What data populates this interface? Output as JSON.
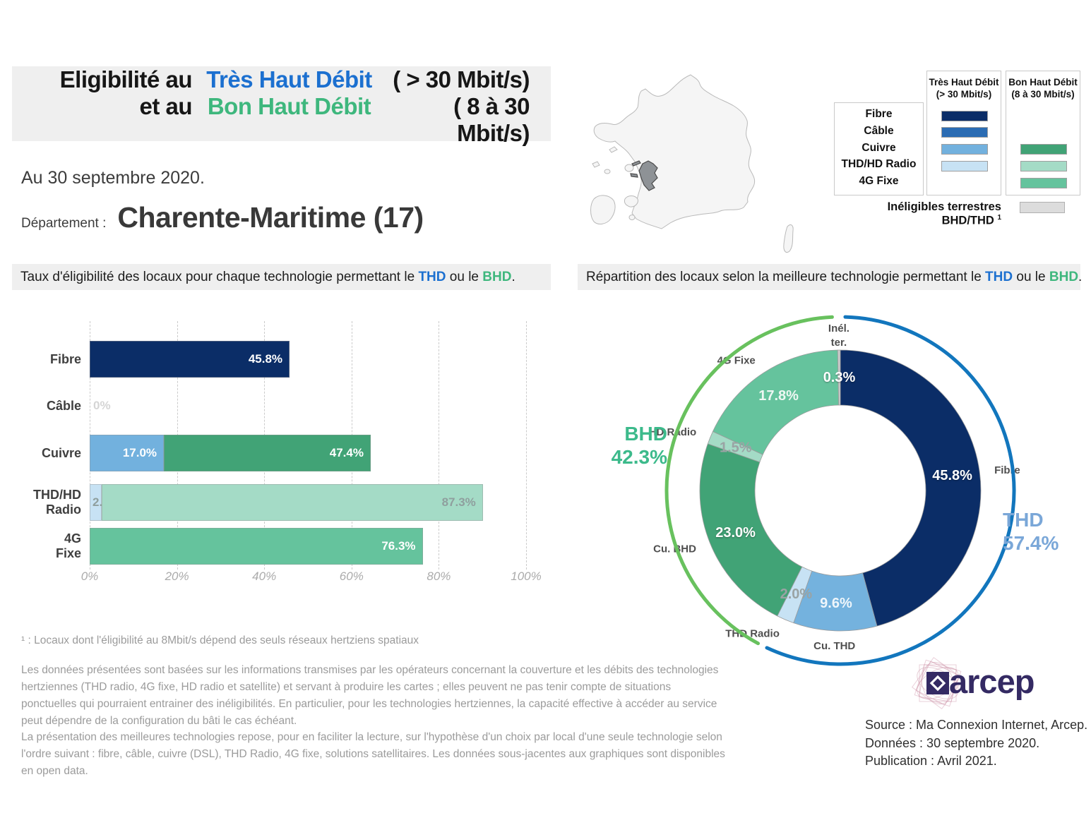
{
  "colors": {
    "accent_blue": "#1c70d0",
    "accent_green": "#3eb77d",
    "arc_blue": "#1276bd",
    "arc_green": "#68c15e",
    "thd_side_label": "#7aa7d8",
    "bhd_side_label": "#3cba8b",
    "navy": "#0b2d67",
    "cable_blue": "#2b6cb3",
    "light_blue": "#72b1de",
    "pale_blue": "#c7e2f4",
    "green": "#41a376",
    "pale_teal": "#a4dbc6",
    "teal": "#65c39d",
    "ineligible_gray": "#dcdcdc"
  },
  "header": {
    "line1": {
      "black": "Eligibilité au",
      "colored": "Très Haut Débit",
      "paren": "( > 30 Mbit/s)"
    },
    "line2": {
      "black": "et au",
      "colored": "Bon Haut Débit",
      "paren": "( 8 à 30 Mbit/s)"
    },
    "date": "Au 30 septembre 2020.",
    "department_label": "Département :",
    "department_name": "Charente-Maritime (17)"
  },
  "map": {
    "highlight_name": "Charente-Maritime"
  },
  "legend": {
    "col_thd_title": "Très Haut Débit",
    "col_thd_sub": "(> 30 Mbit/s)",
    "col_bhd_title": "Bon Haut Débit",
    "col_bhd_sub": "(8 à 30 Mbit/s)",
    "rows": [
      {
        "label": "Fibre",
        "thd": "#0b2d67",
        "bhd": null
      },
      {
        "label": "Câble",
        "thd": "#2b6cb3",
        "bhd": null
      },
      {
        "label": "Cuivre",
        "thd": "#72b1de",
        "bhd": "#41a376"
      },
      {
        "label": "THD/HD Radio",
        "thd": "#c7e2f4",
        "bhd": "#a4dbc6"
      },
      {
        "label": "4G Fixe",
        "thd": null,
        "bhd": "#65c39d"
      }
    ],
    "ineligibles_label": "Inéligibles terrestres BHD/THD",
    "ineligibles_sup": "1",
    "ineligibles_color": "#dcdcdc"
  },
  "sections": {
    "left": {
      "prefix": "Taux d'éligibilité des locaux pour chaque technologie permettant le ",
      "thd": "THD",
      "mid": " ou le ",
      "bhd": "BHD",
      "end": "."
    },
    "right": {
      "prefix": "Répartition des locaux selon la meilleure technologie permettant le ",
      "thd": "THD",
      "mid": " ou le ",
      "bhd": "BHD",
      "end": "."
    }
  },
  "chart_data": [
    {
      "type": "bar",
      "orientation": "horizontal",
      "title": "Taux d'éligibilité des locaux pour chaque technologie permettant le THD ou le BHD.",
      "categories": [
        "Fibre",
        "Câble",
        "Cuivre",
        "THD/HD Radio",
        "4G Fixe"
      ],
      "xlim": [
        0,
        100
      ],
      "grid": "dashed-vertical",
      "xlabel_ticks": [
        "0%",
        "20%",
        "40%",
        "60%",
        "80%",
        "100%"
      ],
      "rows": [
        {
          "category": "Fibre",
          "lines": [
            "Fibre"
          ],
          "segments": [
            {
              "name": "Fibre THD",
              "value": 45.8,
              "label": "45.8%",
              "color": "#0b2d67",
              "label_color": "#ffffff"
            }
          ]
        },
        {
          "category": "Câble",
          "lines": [
            "Câble"
          ],
          "segments": [],
          "zero_label": "0%"
        },
        {
          "category": "Cuivre",
          "lines": [
            "Cuivre"
          ],
          "segments": [
            {
              "name": "Cuivre THD",
              "value": 17.0,
              "label": "17.0%",
              "color": "#72b1de",
              "label_color": "#ffffff"
            },
            {
              "name": "Cuivre BHD",
              "value": 47.4,
              "label": "47.4%",
              "color": "#41a376",
              "label_color": "#ffffff"
            }
          ]
        },
        {
          "category": "THD/HD Radio",
          "lines": [
            "THD/HD",
            "Radio"
          ],
          "segments": [
            {
              "name": "THD Radio",
              "value": 2.8,
              "label": "2.8%",
              "color": "#c7e2f4",
              "label_color": "#8f9f9e"
            },
            {
              "name": "HD Radio",
              "value": 87.3,
              "label": "87.3%",
              "color": "#a4dbc6",
              "label_color": "#8f9f9e"
            }
          ]
        },
        {
          "category": "4G Fixe",
          "lines": [
            "4G",
            "Fixe"
          ],
          "segments": [
            {
              "name": "4G Fixe",
              "value": 76.3,
              "label": "76.3%",
              "color": "#65c39d",
              "label_color": "#ffffff"
            }
          ]
        }
      ]
    },
    {
      "type": "donut",
      "title": "Répartition des locaux selon la meilleure technologie permettant le THD ou le BHD.",
      "start": "top",
      "direction": "clockwise",
      "slices": [
        {
          "name": "Fibre",
          "label_lines": [
            "Fibre"
          ],
          "value": 45.8,
          "pct_label": "45.8%",
          "color": "#0b2d67",
          "pct_color": "#ffffff"
        },
        {
          "name": "Cu. THD",
          "label_lines": [
            "Cu. THD"
          ],
          "value": 9.6,
          "pct_label": "9.6%",
          "color": "#74b2de",
          "pct_color": "#eff6fb"
        },
        {
          "name": "THD Radio",
          "label_lines": [
            "THD Radio"
          ],
          "value": 2.0,
          "pct_label": "2.0%",
          "color": "#c7e2f4",
          "pct_color": "#9aa3a4"
        },
        {
          "name": "Cu. BHD",
          "label_lines": [
            "Cu. BHD"
          ],
          "value": 23.0,
          "pct_label": "23.0%",
          "color": "#41a376",
          "pct_color": "#ffffff"
        },
        {
          "name": "HD Radio",
          "label_lines": [
            "HD Radio"
          ],
          "value": 1.5,
          "pct_label": "1.5%",
          "color": "#a4dbc6",
          "pct_color": "#9aa3a4"
        },
        {
          "name": "4G Fixe",
          "label_lines": [
            "4G Fixe"
          ],
          "value": 17.8,
          "pct_label": "17.8%",
          "color": "#65c39d",
          "pct_color": "#edf7f2"
        },
        {
          "name": "Inél. ter.",
          "label_lines": [
            "Inél.",
            "ter."
          ],
          "value": 0.3,
          "pct_label": "0.3%",
          "color": "#c9cbcb",
          "pct_color": "#ffffff"
        }
      ],
      "outer_arcs": [
        {
          "name": "THD",
          "value_label": "57.4%",
          "from": 0,
          "to": 57.4,
          "color": "#1276bd"
        },
        {
          "name": "BHD",
          "value_label": "42.3%",
          "from": 57.4,
          "to": 99.7,
          "color": "#68c15e"
        }
      ],
      "side_labels": [
        {
          "name": "THD",
          "value": "57.4%",
          "color": "#7aa7d8"
        },
        {
          "name": "BHD",
          "value": "42.3%",
          "color": "#3cba8b"
        }
      ]
    }
  ],
  "footnotes": {
    "note1": "¹ : Locaux dont l'éligibilité au 8Mbit/s dépend des seuls réseaux hertziens spatiaux",
    "para1": "Les données présentées sont basées sur les informations transmises par les opérateurs concernant la couverture et les débits des technologies hertziennes (THD radio, 4G fixe, HD radio et satellite) et servant à produire les cartes ; elles peuvent ne pas tenir compte de situations ponctuelles qui pourraient entrainer des inéligibilités. En particulier, pour les technologies hertziennes, la capacité effective à accéder au service peut dépendre de la configuration du bâti le cas échéant.",
    "para2": "La présentation des meilleures technologies repose, pour en faciliter la lecture, sur l'hypothèse d'un choix par local d'une seule technologie selon l'ordre suivant : fibre, câble, cuivre (DSL), THD Radio, 4G fixe, solutions satellitaires. Les données sous-jacentes aux graphiques sont disponibles en open data."
  },
  "source": {
    "logo_text": "arcep",
    "line1": "Source : Ma Connexion Internet, Arcep.",
    "line2": "Données : 30 septembre 2020.",
    "line3": "Publication : Avril 2021."
  }
}
